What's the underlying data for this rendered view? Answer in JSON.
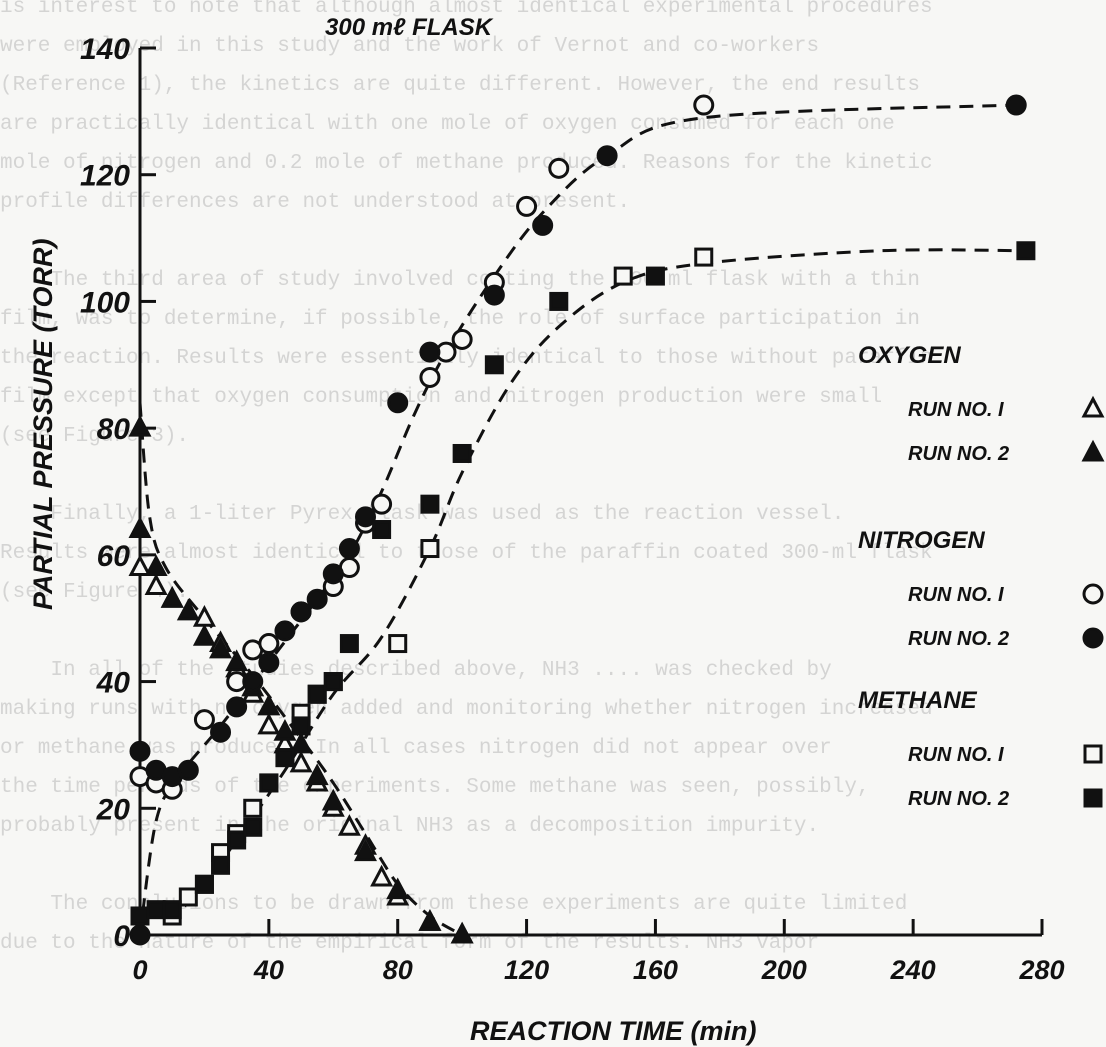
{
  "background_text_lines": [
    "is interest to note that although almost identical experimental procedures",
    "were employed in this study and the work of Vernot and co-workers",
    "(Reference 1), the kinetics are quite different. However, the end results",
    "are practically identical with one mole of oxygen consumed for each one",
    "mole of nitrogen and 0.2 mole of methane produced. Reasons for the kinetic",
    "profile differences are not understood at present.",
    "",
    "    The third area of study involved coating the 300-ml flask with a thin",
    "film, was to determine, if possible, the role of surface participation in",
    "the reaction. Results were essentially identical to those without paraffin",
    "film except that oxygen consumption and nitrogen production were small",
    "(see Figure 3).",
    "",
    "    Finally, a 1-liter Pyrex flask was used as the reaction vessel.",
    "Results were almost identical to those of the paraffin coated 300-ml flask",
    "(see Figure 4).",
    "",
    "    In all of the studies described above, NH3 .... was checked by",
    "making runs with no oxygen added and monitoring whether nitrogen increased",
    "or methane was produced. In all cases nitrogen did not appear over",
    "the time periods of the experiments. Some methane was seen, possibly,",
    "probably present in the original NH3 as a decomposition impurity.",
    "",
    "    The conclusions to be drawn from these experiments are quite limited",
    "due to the nature of the empirical form of the results. NH3 vapor"
  ],
  "chart_data": {
    "type": "scatter",
    "title": "300 mℓ FLASK",
    "xlabel": "REACTION TIME  (min)",
    "ylabel": "PARTIAL PRESSURE (TORR)",
    "xlim": [
      0,
      280
    ],
    "ylim": [
      0,
      140
    ],
    "xticks": [
      0,
      40,
      80,
      120,
      160,
      200,
      240,
      280
    ],
    "xtick_labels": [
      "0",
      "40",
      "80",
      "120",
      "160",
      "200",
      "240",
      "280"
    ],
    "yticks": [
      0,
      20,
      40,
      60,
      80,
      100,
      120,
      140
    ],
    "ytick_labels": [
      "0",
      "20",
      "40",
      "60",
      "80",
      "100",
      "120",
      "140"
    ],
    "legend_placement": "right",
    "legend_groups": [
      {
        "title": "OXYGEN",
        "entries": [
          {
            "label": "RUN NO. I",
            "marker": "triangle-open"
          },
          {
            "label": "RUN NO. 2",
            "marker": "triangle-filled"
          }
        ]
      },
      {
        "title": "NITROGEN",
        "entries": [
          {
            "label": "RUN NO. I",
            "marker": "circle-open"
          },
          {
            "label": "RUN NO. 2",
            "marker": "circle-filled"
          }
        ]
      },
      {
        "title": "METHANE",
        "entries": [
          {
            "label": "RUN NO. I",
            "marker": "square-open"
          },
          {
            "label": "RUN NO. 2",
            "marker": "square-filled"
          }
        ]
      }
    ],
    "series": [
      {
        "group": "OXYGEN",
        "run": "RUN NO. I",
        "marker": "triangle-open",
        "points": [
          [
            0,
            58
          ],
          [
            5,
            55
          ],
          [
            10,
            53
          ],
          [
            20,
            50
          ],
          [
            25,
            46
          ],
          [
            30,
            42
          ],
          [
            35,
            38
          ],
          [
            40,
            33
          ],
          [
            45,
            30
          ],
          [
            50,
            27
          ],
          [
            55,
            24
          ],
          [
            60,
            20
          ],
          [
            65,
            17
          ],
          [
            70,
            14
          ],
          [
            75,
            9
          ],
          [
            80,
            6
          ],
          [
            90,
            2
          ],
          [
            100,
            0
          ]
        ]
      },
      {
        "group": "OXYGEN",
        "run": "RUN NO. 2",
        "marker": "triangle-filled",
        "points": [
          [
            0,
            80
          ],
          [
            0,
            64
          ],
          [
            5,
            58
          ],
          [
            10,
            53
          ],
          [
            15,
            51
          ],
          [
            20,
            47
          ],
          [
            25,
            45
          ],
          [
            30,
            43
          ],
          [
            35,
            39
          ],
          [
            40,
            36
          ],
          [
            45,
            32
          ],
          [
            50,
            30
          ],
          [
            55,
            25
          ],
          [
            60,
            21
          ],
          [
            70,
            13
          ],
          [
            80,
            7
          ],
          [
            90,
            2
          ],
          [
            100,
            0
          ]
        ]
      },
      {
        "group": "NITROGEN",
        "run": "RUN NO. I",
        "marker": "circle-open",
        "points": [
          [
            0,
            25
          ],
          [
            5,
            24
          ],
          [
            10,
            23
          ],
          [
            20,
            34
          ],
          [
            30,
            40
          ],
          [
            35,
            45
          ],
          [
            40,
            46
          ],
          [
            50,
            51
          ],
          [
            60,
            55
          ],
          [
            65,
            58
          ],
          [
            70,
            65
          ],
          [
            75,
            68
          ],
          [
            90,
            88
          ],
          [
            95,
            92
          ],
          [
            100,
            94
          ],
          [
            110,
            103
          ],
          [
            120,
            115
          ],
          [
            130,
            121
          ],
          [
            175,
            131
          ]
        ]
      },
      {
        "group": "NITROGEN",
        "run": "RUN NO. 2",
        "marker": "circle-filled",
        "points": [
          [
            0,
            0
          ],
          [
            0,
            29
          ],
          [
            5,
            26
          ],
          [
            10,
            25
          ],
          [
            15,
            26
          ],
          [
            25,
            32
          ],
          [
            30,
            36
          ],
          [
            35,
            40
          ],
          [
            40,
            43
          ],
          [
            45,
            48
          ],
          [
            50,
            51
          ],
          [
            55,
            53
          ],
          [
            60,
            57
          ],
          [
            65,
            61
          ],
          [
            70,
            66
          ],
          [
            80,
            84
          ],
          [
            90,
            92
          ],
          [
            110,
            101
          ],
          [
            125,
            112
          ],
          [
            145,
            123
          ],
          [
            272,
            131
          ]
        ]
      },
      {
        "group": "METHANE",
        "run": "RUN NO. I",
        "marker": "square-open",
        "points": [
          [
            0,
            3
          ],
          [
            10,
            3
          ],
          [
            15,
            6
          ],
          [
            20,
            8
          ],
          [
            25,
            13
          ],
          [
            30,
            16
          ],
          [
            35,
            20
          ],
          [
            40,
            24
          ],
          [
            45,
            28
          ],
          [
            50,
            35
          ],
          [
            55,
            38
          ],
          [
            60,
            40
          ],
          [
            80,
            46
          ],
          [
            90,
            61
          ],
          [
            150,
            104
          ],
          [
            175,
            107
          ]
        ]
      },
      {
        "group": "METHANE",
        "run": "RUN NO. 2",
        "marker": "square-filled",
        "points": [
          [
            0,
            3
          ],
          [
            5,
            4
          ],
          [
            10,
            4
          ],
          [
            20,
            8
          ],
          [
            25,
            11
          ],
          [
            30,
            15
          ],
          [
            35,
            17
          ],
          [
            40,
            24
          ],
          [
            45,
            28
          ],
          [
            50,
            33
          ],
          [
            55,
            38
          ],
          [
            60,
            40
          ],
          [
            65,
            46
          ],
          [
            75,
            64
          ],
          [
            90,
            68
          ],
          [
            100,
            76
          ],
          [
            110,
            90
          ],
          [
            130,
            100
          ],
          [
            160,
            104
          ],
          [
            275,
            108
          ]
        ]
      }
    ],
    "fit_curves": [
      {
        "name": "oxygen",
        "points": [
          [
            0,
            84
          ],
          [
            3,
            66
          ],
          [
            8,
            58
          ],
          [
            20,
            50
          ],
          [
            35,
            41
          ],
          [
            50,
            31
          ],
          [
            60,
            24
          ],
          [
            70,
            16
          ],
          [
            80,
            8
          ],
          [
            90,
            3
          ],
          [
            100,
            0
          ]
        ]
      },
      {
        "name": "nitrogen",
        "points": [
          [
            0,
            0
          ],
          [
            5,
            18
          ],
          [
            12,
            25
          ],
          [
            25,
            33
          ],
          [
            40,
            43
          ],
          [
            55,
            53
          ],
          [
            65,
            60
          ],
          [
            75,
            70
          ],
          [
            85,
            82
          ],
          [
            95,
            92
          ],
          [
            110,
            104
          ],
          [
            125,
            114
          ],
          [
            145,
            123
          ],
          [
            175,
            129
          ],
          [
            272,
            131
          ]
        ]
      },
      {
        "name": "methane",
        "points": [
          [
            0,
            3
          ],
          [
            15,
            5
          ],
          [
            30,
            15
          ],
          [
            45,
            26
          ],
          [
            60,
            38
          ],
          [
            75,
            47
          ],
          [
            90,
            61
          ],
          [
            100,
            73
          ],
          [
            115,
            87
          ],
          [
            130,
            96
          ],
          [
            150,
            103
          ],
          [
            175,
            106
          ],
          [
            230,
            108
          ],
          [
            275,
            108
          ]
        ]
      }
    ]
  }
}
